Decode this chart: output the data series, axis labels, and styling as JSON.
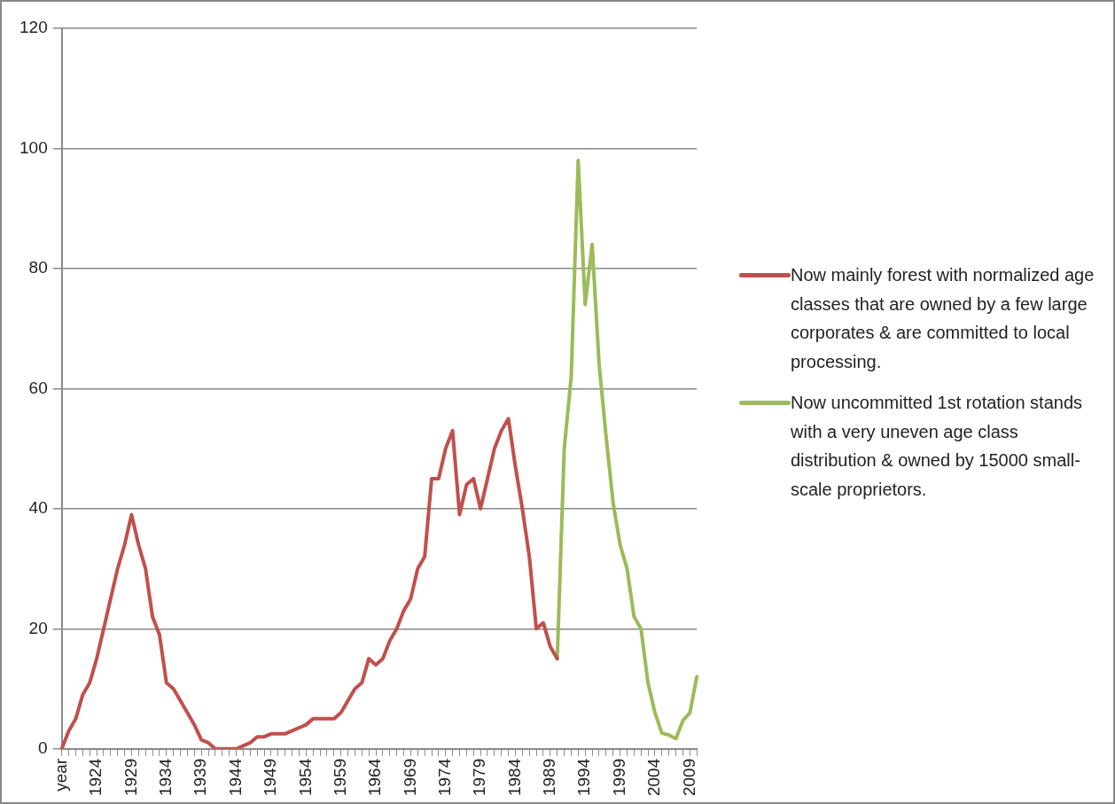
{
  "chart_data": {
    "type": "line",
    "categories": [
      "year",
      null,
      null,
      null,
      null,
      "1924",
      null,
      null,
      null,
      null,
      "1929",
      null,
      null,
      null,
      null,
      "1934",
      null,
      null,
      null,
      null,
      "1939",
      null,
      null,
      null,
      null,
      "1944",
      null,
      null,
      null,
      null,
      "1949",
      null,
      null,
      null,
      null,
      "1954",
      null,
      null,
      null,
      null,
      "1959",
      null,
      null,
      null,
      null,
      "1964",
      null,
      null,
      null,
      null,
      "1969",
      null,
      null,
      null,
      null,
      "1974",
      null,
      null,
      null,
      null,
      "1979",
      null,
      null,
      null,
      null,
      "1984",
      null,
      null,
      null,
      null,
      "1989",
      null,
      null,
      null,
      null,
      "1994",
      null,
      null,
      null,
      null,
      "1999",
      null,
      null,
      null,
      null,
      "2004",
      null,
      null,
      null,
      null,
      "2009",
      null
    ],
    "series": [
      {
        "name": "Now mainly forest with normalized age classes that are owned by a few large corporates & are committed to local processing.",
        "color": "#c0504d",
        "values": [
          0,
          3,
          5,
          9,
          11,
          15,
          20,
          25,
          30,
          34,
          39,
          34,
          30,
          22,
          19,
          11,
          10,
          8,
          6,
          4,
          1.5,
          1,
          0,
          0,
          0,
          0,
          0.5,
          1,
          2,
          2,
          2.5,
          2.5,
          2.5,
          3,
          3.5,
          4,
          5,
          5,
          5,
          5,
          6,
          8,
          10,
          11,
          15,
          14,
          15,
          18,
          20,
          23,
          25,
          30,
          32,
          45,
          45,
          50,
          53,
          39,
          44,
          45,
          40,
          45,
          50,
          53,
          55,
          47,
          40,
          32,
          20,
          21,
          17,
          15,
          null,
          null,
          null,
          null,
          null,
          null,
          null,
          null,
          null,
          null,
          null,
          null,
          null,
          null,
          null,
          null,
          null,
          null,
          null,
          null
        ]
      },
      {
        "name": "Now uncommitted 1st rotation stands with a very uneven age class distribution & owned by 15000 small-scale proprietors.",
        "color": "#9bbb59",
        "values": [
          null,
          null,
          null,
          null,
          null,
          null,
          null,
          null,
          null,
          null,
          null,
          null,
          null,
          null,
          null,
          null,
          null,
          null,
          null,
          null,
          null,
          null,
          null,
          null,
          null,
          null,
          null,
          null,
          null,
          null,
          null,
          null,
          null,
          null,
          null,
          null,
          null,
          null,
          null,
          null,
          null,
          null,
          null,
          null,
          null,
          null,
          null,
          null,
          null,
          null,
          null,
          null,
          null,
          null,
          null,
          null,
          null,
          null,
          null,
          null,
          null,
          null,
          null,
          null,
          null,
          null,
          null,
          null,
          null,
          null,
          null,
          15,
          50,
          62,
          98,
          74,
          84,
          64,
          52,
          41,
          34,
          30,
          22,
          20,
          11,
          6,
          2.6,
          2.3,
          1.7,
          4.7,
          6,
          12
        ]
      }
    ],
    "ylim": [
      0,
      120
    ],
    "yticks": [
      0,
      20,
      40,
      60,
      80,
      100,
      120
    ],
    "grid": "y",
    "legend": "right",
    "marker": "none"
  }
}
